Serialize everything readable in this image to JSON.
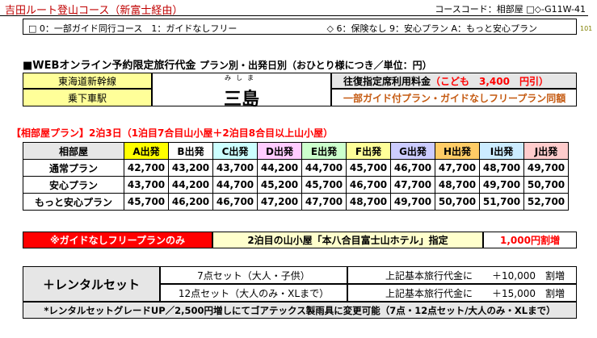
{
  "header": {
    "course_title": "吉田ルート登山コース（新富士経由）",
    "course_code": "コースコード：相部屋 □◇-G11W-41"
  },
  "options": {
    "guide": "□ 0：一部ガイド同行コース　1：ガイドなしフリー",
    "insurance": "◇ 6：保険なし 9：安心プラン A：もっと安心プラン"
  },
  "page_number": "101",
  "price_heading": {
    "main": "■WEBオンライン予約限定旅行代金",
    "sub": "プラン別・出発日別（おひとり様につき／単位：円）"
  },
  "station": {
    "line": "東海道新幹線",
    "label": "乗下車駅",
    "furigana": "みしま",
    "name": "三島",
    "fee_label": "往復指定席利用料金",
    "fee_child": "（こども　3,400　円引）",
    "same_price": "一部ガイド付プラン・ガイドなしフリープラン同額"
  },
  "plan_heading": "【相部屋プラン】2泊3日（1泊目7合目山小屋＋2泊目8合目以上山小屋）",
  "table": {
    "corner": "相部屋",
    "columns": [
      {
        "label": "A出発",
        "color": "#ffff00"
      },
      {
        "label": "B出発",
        "color": "#ffffff"
      },
      {
        "label": "C出発",
        "color": "#ccffff"
      },
      {
        "label": "D出発",
        "color": "#ffccff"
      },
      {
        "label": "E出発",
        "color": "#ccffcc"
      },
      {
        "label": "F出発",
        "color": "#ffff99"
      },
      {
        "label": "G出発",
        "color": "#ccccff"
      },
      {
        "label": "H出発",
        "color": "#ffcc66"
      },
      {
        "label": "I出発",
        "color": "#ccecff"
      },
      {
        "label": "J出発",
        "color": "#ffcccc"
      }
    ],
    "rows": [
      {
        "name": "通常プラン",
        "values": [
          "42,700",
          "43,200",
          "43,700",
          "44,200",
          "44,700",
          "45,700",
          "46,700",
          "47,700",
          "48,700",
          "49,700"
        ]
      },
      {
        "name": "安心プラン",
        "values": [
          "43,700",
          "44,200",
          "44,700",
          "45,200",
          "45,700",
          "46,700",
          "47,700",
          "48,700",
          "49,700",
          "50,700"
        ]
      },
      {
        "name": "もっと安心プラン",
        "values": [
          "45,700",
          "46,200",
          "46,700",
          "47,200",
          "47,700",
          "48,700",
          "49,700",
          "50,700",
          "51,700",
          "52,700"
        ]
      }
    ]
  },
  "guideless": {
    "label": "※ガイドなしフリープランのみ",
    "hut": "2泊目の山小屋「本八合目富士山ホテル」指定",
    "surcharge": "1,000円割増"
  },
  "rental": {
    "title": "＋レンタルセット",
    "sets": [
      {
        "name": "7点セット（大人・子供）",
        "text": "上記基本旅行代金に",
        "amount": "＋10,000　割増"
      },
      {
        "name": "12点セット（大人のみ・XLまで）",
        "text": "上記基本旅行代金に",
        "amount": "＋15,000　割増"
      }
    ],
    "note": "*レンタルセットグレードUP／2,500円増しにてゴアテックス製雨具に変更可能（7点・12点セット/大人のみ・XLまで）"
  }
}
